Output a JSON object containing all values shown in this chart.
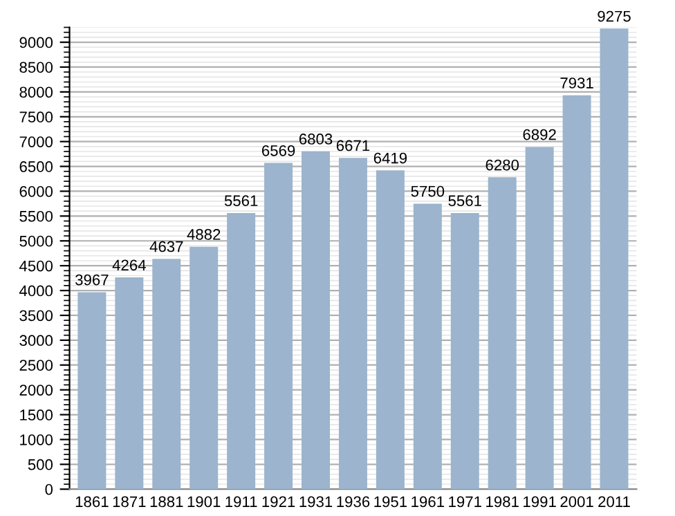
{
  "chart_data": {
    "type": "bar",
    "categories": [
      "1861",
      "1871",
      "1881",
      "1901",
      "1911",
      "1921",
      "1931",
      "1936",
      "1951",
      "1961",
      "1971",
      "1981",
      "1991",
      "2001",
      "2011"
    ],
    "values": [
      3967,
      4264,
      4637,
      4882,
      5561,
      6569,
      6803,
      6671,
      6419,
      5750,
      5561,
      6280,
      6892,
      7931,
      9275
    ],
    "color": "#9cb4cd",
    "ylim": [
      0,
      9300
    ],
    "yticks": [
      0,
      500,
      1000,
      1500,
      2000,
      2500,
      3000,
      3500,
      4000,
      4500,
      5000,
      5500,
      6000,
      6500,
      7000,
      7500,
      8000,
      8500,
      9000
    ],
    "grid": "y",
    "data_labels": true
  }
}
